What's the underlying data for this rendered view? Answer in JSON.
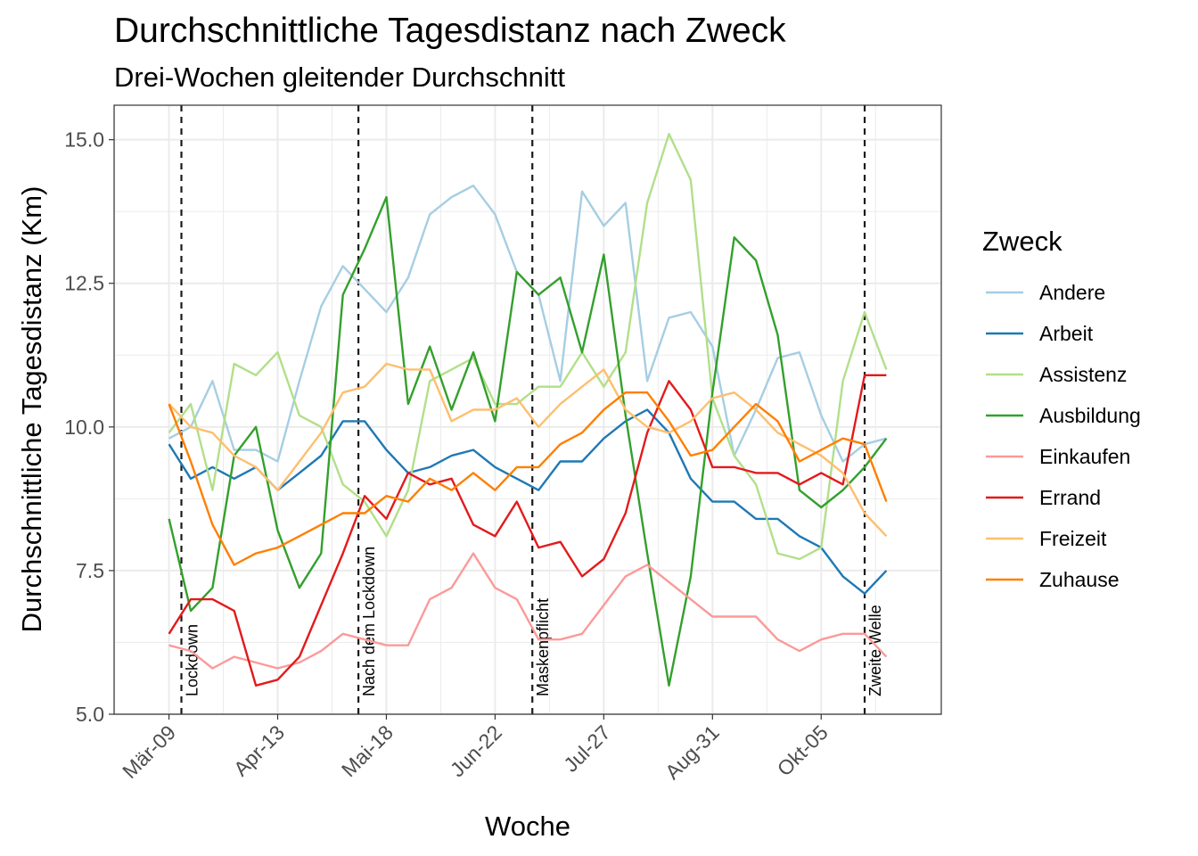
{
  "chart_data": {
    "type": "line",
    "title": "Durchschnittliche Tagesdistanz nach Zweck",
    "subtitle": "Drei-Wochen gleitender Durchschnitt",
    "xlabel": "Woche",
    "ylabel": "Durchschnittliche Tagesdistanz (Km)",
    "ylim": [
      5.0,
      15.6
    ],
    "grid": true,
    "legend_title": "Zweck",
    "legend_position": "right",
    "x": [
      "2020-03-09",
      "2020-03-16",
      "2020-03-23",
      "2020-03-30",
      "2020-04-06",
      "2020-04-13",
      "2020-04-20",
      "2020-04-27",
      "2020-05-04",
      "2020-05-11",
      "2020-05-18",
      "2020-05-25",
      "2020-06-01",
      "2020-06-08",
      "2020-06-15",
      "2020-06-22",
      "2020-06-29",
      "2020-07-06",
      "2020-07-13",
      "2020-07-20",
      "2020-07-27",
      "2020-08-03",
      "2020-08-10",
      "2020-08-17",
      "2020-08-24",
      "2020-08-31",
      "2020-09-07",
      "2020-09-14",
      "2020-09-21",
      "2020-09-28",
      "2020-10-05",
      "2020-10-12",
      "2020-10-19",
      "2020-10-26"
    ],
    "x_tick_labels": [
      "Mär-09",
      "Apr-13",
      "Mai-18",
      "Jun-22",
      "Jul-27",
      "Aug-31",
      "Okt-05"
    ],
    "y_tick_labels": [
      "5.0",
      "7.5",
      "10.0",
      "12.5",
      "15.0"
    ],
    "events": [
      {
        "date": "2020-03-13",
        "label": "Lockdown"
      },
      {
        "date": "2020-05-09",
        "label": "Nach dem Lockdown"
      },
      {
        "date": "2020-07-04",
        "label": "Maskenpflicht"
      },
      {
        "date": "2020-10-19",
        "label": "Zweite Welle"
      }
    ],
    "series": [
      {
        "name": "Andere",
        "color": "#a6cee3",
        "values": [
          9.8,
          10.0,
          10.8,
          9.6,
          9.6,
          9.4,
          10.8,
          12.1,
          12.8,
          12.4,
          12.0,
          12.6,
          13.7,
          14.0,
          14.2,
          13.7,
          12.7,
          12.3,
          10.8,
          14.1,
          13.5,
          13.9,
          10.8,
          11.9,
          12.0,
          11.4,
          9.5,
          10.3,
          11.2,
          11.3,
          10.2,
          9.4,
          9.7,
          9.8
        ]
      },
      {
        "name": "Arbeit",
        "color": "#1f78b4",
        "values": [
          9.7,
          9.1,
          9.3,
          9.1,
          9.3,
          8.9,
          9.2,
          9.5,
          10.1,
          10.1,
          9.6,
          9.2,
          9.3,
          9.5,
          9.6,
          9.3,
          9.1,
          8.9,
          9.4,
          9.4,
          9.8,
          10.1,
          10.3,
          9.9,
          9.1,
          8.7,
          8.7,
          8.4,
          8.4,
          8.1,
          7.9,
          7.4,
          7.1,
          7.5
        ]
      },
      {
        "name": "Assistenz",
        "color": "#b2df8a",
        "values": [
          9.9,
          10.4,
          8.9,
          11.1,
          10.9,
          11.3,
          10.2,
          10.0,
          9.0,
          8.7,
          8.1,
          8.9,
          10.8,
          11.0,
          11.2,
          10.4,
          10.4,
          10.7,
          10.7,
          11.3,
          10.7,
          11.3,
          13.9,
          15.1,
          14.3,
          10.5,
          9.5,
          9.0,
          7.8,
          7.7,
          7.9,
          10.8,
          12.0,
          11.0
        ]
      },
      {
        "name": "Ausbildung",
        "color": "#33a02c",
        "values": [
          8.4,
          6.8,
          7.2,
          9.5,
          10.0,
          8.2,
          7.2,
          7.8,
          12.3,
          13.1,
          14.0,
          10.4,
          11.4,
          10.3,
          11.3,
          10.1,
          12.7,
          12.3,
          12.6,
          11.3,
          13.0,
          10.2,
          7.8,
          5.5,
          7.4,
          10.6,
          13.3,
          12.9,
          11.6,
          8.9,
          8.6,
          8.9,
          9.3,
          9.8
        ]
      },
      {
        "name": "Einkaufen",
        "color": "#fb9a99",
        "values": [
          6.2,
          6.1,
          5.8,
          6.0,
          5.9,
          5.8,
          5.9,
          6.1,
          6.4,
          6.3,
          6.2,
          6.2,
          7.0,
          7.2,
          7.8,
          7.2,
          7.0,
          6.3,
          6.3,
          6.4,
          6.9,
          7.4,
          7.6,
          7.3,
          7.0,
          6.7,
          6.7,
          6.7,
          6.3,
          6.1,
          6.3,
          6.4,
          6.4,
          6.0
        ]
      },
      {
        "name": "Errand",
        "color": "#e31a1c",
        "values": [
          6.4,
          7.0,
          7.0,
          6.8,
          5.5,
          5.6,
          6.0,
          6.9,
          7.8,
          8.8,
          8.4,
          9.2,
          9.0,
          9.1,
          8.3,
          8.1,
          8.7,
          7.9,
          8.0,
          7.4,
          7.7,
          8.5,
          9.9,
          10.8,
          10.3,
          9.3,
          9.3,
          9.2,
          9.2,
          9.0,
          9.2,
          9.0,
          10.9,
          10.9
        ]
      },
      {
        "name": "Freizeit",
        "color": "#fdbf6f",
        "values": [
          10.4,
          10.0,
          9.9,
          9.5,
          9.3,
          8.9,
          9.4,
          9.9,
          10.6,
          10.7,
          11.1,
          11.0,
          11.0,
          10.1,
          10.3,
          10.3,
          10.5,
          10.0,
          10.4,
          10.7,
          11.0,
          10.3,
          10.0,
          9.9,
          10.1,
          10.5,
          10.6,
          10.3,
          9.9,
          9.7,
          9.5,
          9.2,
          8.5,
          8.1
        ]
      },
      {
        "name": "Zuhause",
        "color": "#ff7f00",
        "values": [
          10.4,
          9.4,
          8.3,
          7.6,
          7.8,
          7.9,
          8.1,
          8.3,
          8.5,
          8.5,
          8.8,
          8.7,
          9.1,
          8.9,
          9.2,
          8.9,
          9.3,
          9.3,
          9.7,
          9.9,
          10.3,
          10.6,
          10.6,
          10.1,
          9.5,
          9.6,
          10.0,
          10.4,
          10.1,
          9.4,
          9.6,
          9.8,
          9.7,
          8.7
        ]
      }
    ]
  }
}
